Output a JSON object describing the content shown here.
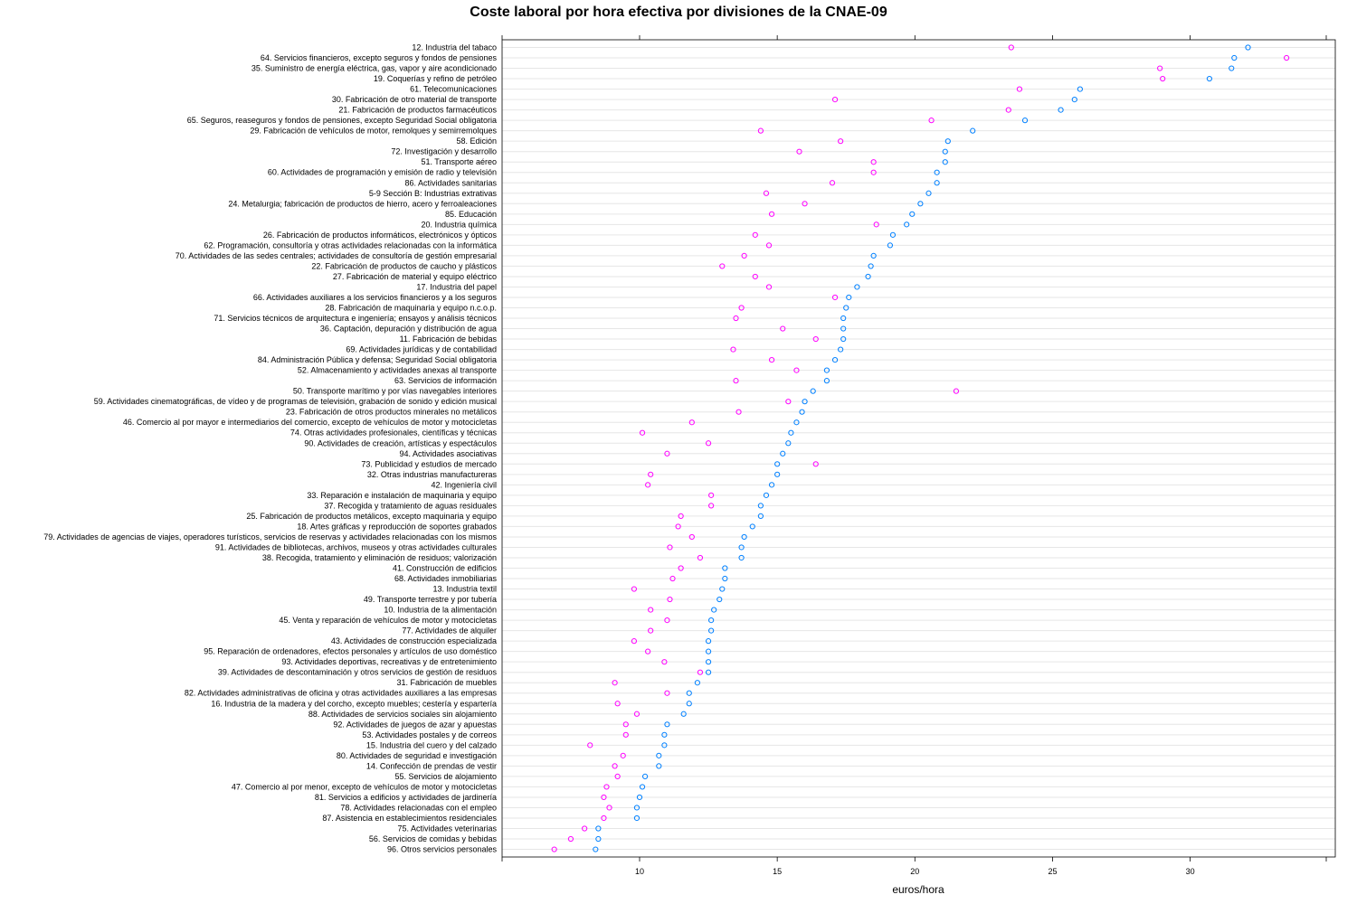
{
  "chart_data": {
    "type": "scatter",
    "title": "Coste laboral por hora efectiva por divisiones de la CNAE-09",
    "xlabel": "euros/hora",
    "ylabel": "",
    "xlim": [
      5,
      35
    ],
    "xticks": [
      10,
      15,
      20,
      25,
      30
    ],
    "grid": true,
    "legend": "none",
    "colors": {
      "series_1": "#0080ff",
      "series_2": "#ff00ff"
    },
    "categories": [
      "12. Industria del tabaco",
      "64. Servicios financieros, excepto seguros y fondos de pensiones",
      "35. Suministro de energía eléctrica, gas, vapor y aire acondicionado",
      "19. Coquerías y refino de petróleo",
      "61. Telecomunicaciones",
      "30. Fabricación de otro material de transporte",
      "21. Fabricación de productos farmacéuticos",
      "65. Seguros, reaseguros y fondos de pensiones, excepto Seguridad Social obligatoria",
      "29. Fabricación de vehículos de motor, remolques y semirremolques",
      "58. Edición",
      "72. Investigación y desarrollo",
      "51. Transporte aéreo",
      "60. Actividades de programación y emisión de radio y televisión",
      "86. Actividades sanitarias",
      "5-9 Sección B: Industrias extrativas",
      "24. Metalurgia; fabricación de productos de hierro, acero y ferroaleaciones",
      "85. Educación",
      "20. Industria química",
      "26. Fabricación de productos informáticos, electrónicos y ópticos",
      "62. Programación, consultoría y otras actividades relacionadas con la informática",
      "70. Actividades de las sedes centrales; actividades de consultoría de gestión empresarial",
      "22. Fabricación de productos de caucho y plásticos",
      "27. Fabricación de material y equipo eléctrico",
      "17. Industria del papel",
      "66. Actividades auxiliares a los servicios financieros y a los seguros",
      "28. Fabricación de maquinaria y equipo n.c.o.p.",
      "71. Servicios técnicos de arquitectura e ingeniería; ensayos y análisis técnicos",
      "36. Captación, depuración y distribución de agua",
      "11. Fabricación de bebidas",
      "69. Actividades jurídicas y de contabilidad",
      "84. Administración Pública y defensa; Seguridad Social obligatoria",
      "52. Almacenamiento y actividades anexas al transporte",
      "63. Servicios de información",
      "50. Transporte marítimo y por vías navegables interiores",
      "59. Actividades cinematográficas, de vídeo y de programas de televisión, grabación de sonido y edición musical",
      "23. Fabricación de otros productos minerales no metálicos",
      "46. Comercio al por mayor e intermediarios del comercio, excepto de vehículos de motor y motocicletas",
      "74. Otras actividades profesionales, científicas y técnicas",
      "90. Actividades de creación, artísticas y espectáculos",
      "94. Actividades asociativas",
      "73. Publicidad y estudios de mercado",
      "32. Otras industrias manufactureras",
      "42. Ingeniería civil",
      "33. Reparación e instalación de maquinaria y equipo",
      "37. Recogida y tratamiento de aguas residuales",
      "25. Fabricación de productos metálicos, excepto maquinaria y equipo",
      "18. Artes gráficas y reproducción de soportes grabados",
      "79. Actividades de agencias de viajes, operadores turísticos, servicios de reservas y actividades relacionadas con los mismos",
      "91. Actividades de bibliotecas, archivos, museos y otras actividades culturales",
      "38. Recogida, tratamiento y eliminación de residuos; valorización",
      "41. Construcción de edificios",
      "68. Actividades inmobiliarias",
      "13. Industria textil",
      "49. Transporte terrestre y por tubería",
      "10. Industria de la alimentación",
      "45. Venta y reparación de vehículos de motor y motocicletas",
      "77. Actividades de alquiler",
      "43. Actividades de construcción especializada",
      "95. Reparación de ordenadores, efectos personales y artículos de uso doméstico",
      "93. Actividades deportivas, recreativas y de entretenimiento",
      "39. Actividades de descontaminación y otros servicios de gestión de residuos",
      "31. Fabricación de muebles",
      "82. Actividades administrativas de oficina y otras actividades auxiliares a las empresas",
      "16. Industria de la madera y del corcho, excepto muebles; cestería y espartería",
      "88. Actividades de servicios sociales sin alojamiento",
      "92. Actividades de juegos de azar y apuestas",
      "53. Actividades postales y de correos",
      "15. Industria del cuero y del calzado",
      "80. Actividades de seguridad e investigación",
      "14. Confección de prendas de vestir",
      "55. Servicios de alojamiento",
      "47. Comercio al por menor, excepto de vehículos de motor y motocicletas",
      "81. Servicios a edificios y actividades de jardinería",
      "78. Actividades relacionadas con el empleo",
      "87. Asistencia en establecimientos residenciales",
      "75. Actividades veterinarias",
      "56. Servicios de comidas y bebidas",
      "96. Otros servicios personales"
    ],
    "series": [
      {
        "values": [
          32.1,
          31.6,
          31.5,
          30.7,
          26.0,
          25.8,
          25.3,
          24.0,
          22.1,
          21.2,
          21.1,
          21.1,
          20.8,
          20.8,
          20.5,
          20.2,
          19.9,
          19.7,
          19.2,
          19.1,
          18.5,
          18.4,
          18.3,
          17.9,
          17.6,
          17.5,
          17.4,
          17.4,
          17.4,
          17.3,
          17.1,
          16.8,
          16.8,
          16.3,
          16.0,
          15.9,
          15.7,
          15.5,
          15.4,
          15.2,
          15.0,
          15.0,
          14.8,
          14.6,
          14.4,
          14.4,
          14.1,
          13.8,
          13.7,
          13.7,
          13.1,
          13.1,
          13.0,
          12.9,
          12.7,
          12.6,
          12.6,
          12.5,
          12.5,
          12.5,
          12.5,
          12.1,
          11.8,
          11.8,
          11.6,
          11.0,
          10.9,
          10.9,
          10.7,
          10.7,
          10.2,
          10.1,
          10.0,
          9.9,
          9.9,
          8.5,
          8.5,
          8.4
        ]
      },
      {
        "values": [
          23.5,
          33.5,
          28.9,
          29.0,
          23.8,
          17.1,
          23.4,
          20.6,
          14.4,
          17.3,
          15.8,
          18.5,
          18.5,
          17.0,
          14.6,
          16.0,
          14.8,
          18.6,
          14.2,
          14.7,
          13.8,
          13.0,
          14.2,
          14.7,
          17.1,
          13.7,
          13.5,
          15.2,
          16.4,
          13.4,
          14.8,
          15.7,
          13.5,
          21.5,
          15.4,
          13.6,
          11.9,
          10.1,
          12.5,
          11.0,
          16.4,
          10.4,
          10.3,
          12.6,
          12.6,
          11.5,
          11.4,
          11.9,
          11.1,
          12.2,
          11.5,
          11.2,
          9.8,
          11.1,
          10.4,
          11.0,
          10.4,
          9.8,
          10.3,
          10.9,
          12.2,
          9.1,
          11.0,
          9.2,
          9.9,
          9.5,
          9.5,
          8.2,
          9.4,
          9.1,
          9.2,
          8.8,
          8.7,
          8.9,
          8.7,
          8.0,
          7.5,
          6.9
        ]
      }
    ]
  }
}
